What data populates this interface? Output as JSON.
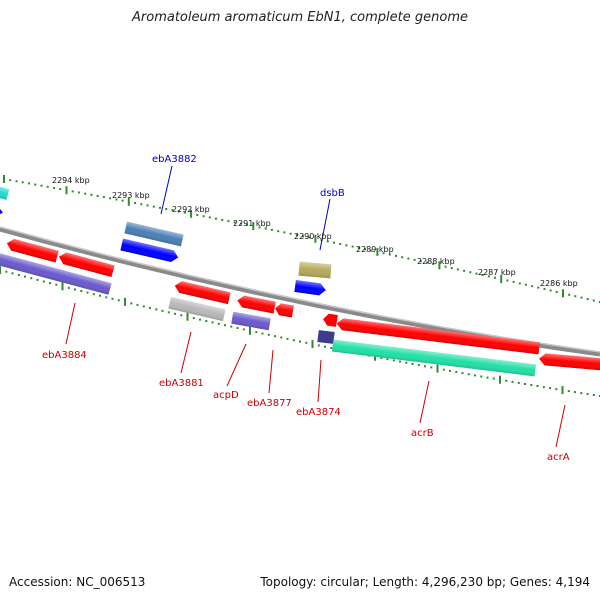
{
  "title": "Aromatoleum aromaticum EbN1, complete genome",
  "accession_text": "Accession: NC_006513",
  "summary_text": "Topology: circular; Length: 4,296,230 bp; Genes: 4,194",
  "scale_ticks": [
    "2294 kbp",
    "2293 kbp",
    "2292 kbp",
    "2291 kbp",
    "2290 kbp",
    "2289 kbp",
    "2288 kbp",
    "2287 kbp",
    "2286 kbp"
  ],
  "forward_labels": [
    "ebA3882",
    "dsbB"
  ],
  "reverse_labels": [
    "ebA3884",
    "ebA3881",
    "acpD",
    "ebA3877",
    "ebA3874",
    "acrB",
    "acrA"
  ],
  "colors": {
    "red": "#ff0000",
    "blue": "#0000ff",
    "steel": "#4a7fb5",
    "olive": "#b5a95a",
    "cyan": "#20d8d0",
    "purple": "#6a5acd",
    "gray": "#b8b8b8",
    "navy": "#3b3b8f",
    "teal": "#22e0a6",
    "backbone": "#8a8a8a",
    "tick": "#2e8b2e",
    "forward_label": "#0000cc",
    "reverse_label": "#cc0000"
  }
}
